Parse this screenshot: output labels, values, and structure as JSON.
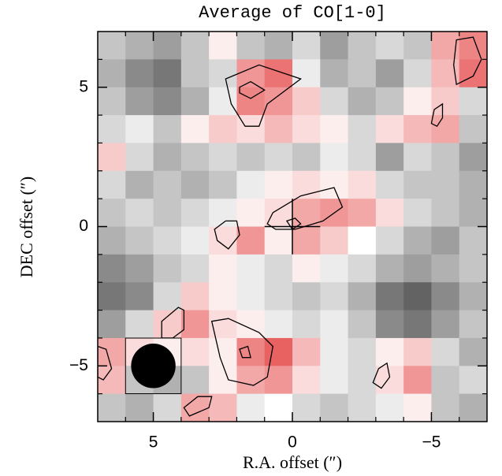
{
  "chart_data": {
    "type": "heatmap",
    "title": "Average of CO[1-0]",
    "xlabel": "R.A. offset (″)",
    "ylabel": "DEC offset (″)",
    "xlim": [
      7,
      -7
    ],
    "ylim": [
      -7,
      7
    ],
    "xticks": [
      5,
      0,
      {
        "value": -5,
        "label": "−5"
      }
    ],
    "yticks": [
      5,
      0,
      {
        "value": -5,
        "label": "−5"
      }
    ],
    "xminorticks": [
      6,
      4,
      3,
      2,
      1,
      -1,
      -2,
      -3,
      -4,
      -6
    ],
    "yminorticks": [
      6,
      4,
      3,
      2,
      1,
      -1,
      -2,
      -3,
      -4,
      -6
    ],
    "x": [
      6.5,
      5.5,
      4.5,
      3.5,
      2.5,
      1.5,
      0.5,
      -0.5,
      -1.5,
      -2.5,
      -3.5,
      -4.5,
      -5.5,
      -6.5
    ],
    "y": [
      6.5,
      5.5,
      4.5,
      3.5,
      2.5,
      1.5,
      0.5,
      -0.5,
      -1.5,
      -2.5,
      -3.5,
      -4.5,
      -5.5,
      -6.5
    ],
    "z": [
      [
        -0.3,
        -0.4,
        -0.5,
        -0.3,
        0.1,
        -0.3,
        -0.4,
        -0.2,
        -0.5,
        -0.3,
        -0.2,
        -0.3,
        0.5,
        0.7
      ],
      [
        -0.4,
        -0.6,
        -0.7,
        -0.3,
        -0.2,
        0.6,
        0.8,
        -0.1,
        -0.4,
        -0.3,
        -0.5,
        -0.2,
        0.4,
        0.8
      ],
      [
        -0.3,
        -0.5,
        -0.6,
        -0.4,
        -0.1,
        0.7,
        0.6,
        0.3,
        -0.2,
        -0.4,
        -0.3,
        0.1,
        0.3,
        -0.2
      ],
      [
        -0.2,
        -0.1,
        -0.3,
        0.1,
        0.3,
        0.2,
        0.4,
        0.2,
        0.1,
        -0.2,
        0.2,
        0.4,
        0.5,
        -0.3
      ],
      [
        0.3,
        -0.2,
        -0.4,
        -0.3,
        -0.2,
        -0.3,
        -0.2,
        -0.3,
        -0.1,
        -0.2,
        -0.5,
        -0.2,
        -0.3,
        -0.5
      ],
      [
        -0.2,
        -0.4,
        -0.3,
        -0.4,
        -0.3,
        -0.1,
        0.1,
        0.2,
        0.1,
        0.2,
        -0.2,
        -0.3,
        -0.3,
        -0.4
      ],
      [
        -0.3,
        -0.2,
        -0.3,
        -0.2,
        -0.1,
        0.1,
        0.2,
        0.5,
        0.6,
        0.5,
        0.2,
        -0.2,
        -0.3,
        -0.4
      ],
      [
        -0.4,
        -0.3,
        -0.2,
        -0.1,
        0.2,
        0.6,
        0.1,
        0.5,
        0.3,
        0.0,
        -0.2,
        -0.4,
        -0.5,
        -0.3
      ],
      [
        -0.6,
        -0.5,
        -0.3,
        -0.2,
        0.1,
        -0.1,
        -0.2,
        0.1,
        -0.1,
        -0.2,
        -0.4,
        -0.5,
        -0.4,
        -0.3
      ],
      [
        -0.7,
        -0.6,
        -0.2,
        0.3,
        0.1,
        -0.1,
        -0.2,
        -0.3,
        -0.2,
        -0.4,
        -0.7,
        -0.8,
        -0.6,
        -0.4
      ],
      [
        -0.5,
        -0.2,
        0.3,
        0.6,
        0.2,
        0.1,
        -0.1,
        -0.2,
        -0.1,
        -0.3,
        -0.6,
        -0.7,
        -0.5,
        -0.3
      ],
      [
        0.5,
        0.2,
        0.1,
        0.2,
        0.1,
        0.7,
        0.9,
        0.4,
        -0.1,
        -0.2,
        0.1,
        0.3,
        -0.2,
        -0.4
      ],
      [
        0.4,
        -0.3,
        -0.4,
        -0.3,
        0.1,
        0.5,
        0.6,
        0.2,
        -0.1,
        -0.2,
        0.2,
        0.6,
        -0.3,
        -0.2
      ],
      [
        -0.3,
        -0.4,
        -0.2,
        0.5,
        0.4,
        -0.1,
        0.0,
        -0.2,
        -0.3,
        -0.2,
        -0.1,
        0.1,
        -0.3,
        -0.4
      ]
    ],
    "positive_color": "#e65050",
    "negative_color": "#3c3c3c",
    "contours": [
      {
        "x": [
          2.4,
          1.2,
          -0.3,
          0.9,
          1.2,
          1.7,
          2.2
        ],
        "y": [
          5.3,
          5.8,
          5.3,
          4.4,
          3.6,
          3.6,
          4.4
        ]
      },
      {
        "x": [
          1.9,
          1.5,
          1.0,
          1.5,
          1.9
        ],
        "y": [
          5.0,
          5.2,
          4.9,
          4.6,
          4.8
        ]
      },
      {
        "x": [
          -5.9,
          -6.5,
          -6.8,
          -6.5,
          -5.9,
          -5.8
        ],
        "y": [
          6.7,
          6.8,
          6.0,
          5.4,
          5.1,
          5.8
        ]
      },
      {
        "x": [
          -5.1,
          -5.4,
          -5.4,
          -5.2,
          -5.0
        ],
        "y": [
          4.2,
          4.4,
          3.9,
          3.6,
          3.7
        ]
      },
      {
        "x": [
          0.7,
          -0.3,
          -1.5,
          -1.8,
          -1.1,
          -0.1,
          0.6,
          0.9
        ],
        "y": [
          0.5,
          1.1,
          1.4,
          0.7,
          0.2,
          -0.1,
          -0.1,
          0.1
        ]
      },
      {
        "x": [
          0.2,
          -0.1,
          -0.3,
          0.0
        ],
        "y": [
          0.2,
          0.3,
          0.1,
          -0.1
        ]
      },
      {
        "x": [
          2.8,
          2.4,
          2.0,
          1.9,
          2.3,
          2.7
        ],
        "y": [
          -0.1,
          0.2,
          0.2,
          -0.3,
          -0.8,
          -0.5
        ]
      },
      {
        "x": [
          2.9,
          2.3,
          1.2,
          0.7,
          0.9,
          1.4,
          2.3,
          2.6
        ],
        "y": [
          -3.4,
          -3.3,
          -3.8,
          -4.3,
          -5.4,
          -5.7,
          -5.5,
          -4.7
        ]
      },
      {
        "x": [
          1.9,
          1.6,
          1.5,
          1.8
        ],
        "y": [
          -4.4,
          -4.3,
          -4.7,
          -4.7
        ]
      },
      {
        "x": [
          4.7,
          4.1,
          3.9,
          3.9,
          4.3,
          4.7
        ],
        "y": [
          -3.4,
          -2.9,
          -3.0,
          -3.7,
          -4.0,
          -4.0
        ]
      },
      {
        "x": [
          -3.1,
          -3.4,
          -3.5,
          -3.2,
          -2.9
        ],
        "y": [
          -5.1,
          -4.9,
          -5.4,
          -5.8,
          -5.6
        ]
      },
      {
        "x": [
          3.9,
          3.4,
          2.9,
          3.0,
          3.7
        ],
        "y": [
          -6.5,
          -6.1,
          -6.1,
          -6.5,
          -6.8
        ]
      },
      {
        "x": [
          7.0,
          6.7,
          6.5,
          6.8,
          7.0
        ],
        "y": [
          -4.3,
          -4.4,
          -5.1,
          -5.5,
          -5.4
        ]
      }
    ],
    "beam": {
      "x": 5,
      "y": -5,
      "diameter": 1.6
    },
    "center": {
      "x": 0,
      "y": 0
    }
  }
}
